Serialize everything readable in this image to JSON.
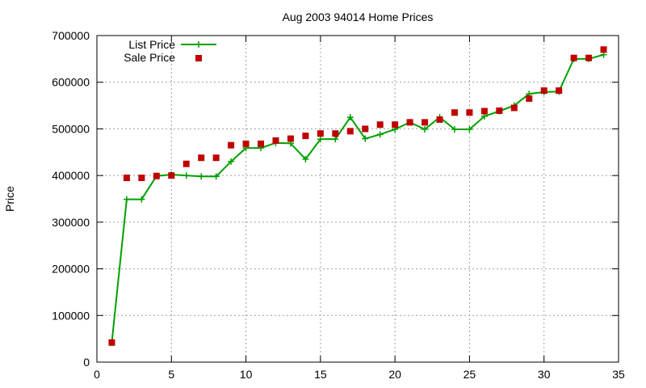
{
  "chart_data": {
    "type": "line",
    "title": "Aug 2003 94014 Home Prices",
    "xlabel": "",
    "ylabel": "Price",
    "xlim": [
      0,
      35
    ],
    "ylim": [
      0,
      700000
    ],
    "xticks": [
      0,
      5,
      10,
      15,
      20,
      25,
      30,
      35
    ],
    "yticks": [
      0,
      100000,
      200000,
      300000,
      400000,
      500000,
      600000,
      700000
    ],
    "grid": true,
    "legend_position": "top-left",
    "x": [
      1,
      2,
      3,
      4,
      5,
      6,
      7,
      8,
      9,
      10,
      11,
      12,
      13,
      14,
      15,
      16,
      17,
      18,
      19,
      20,
      21,
      22,
      23,
      24,
      25,
      26,
      27,
      28,
      29,
      30,
      31,
      32,
      33,
      34
    ],
    "series": [
      {
        "name": "List Price",
        "style": "line-with-plus-markers",
        "color": "#00a000",
        "values": [
          42000,
          349000,
          349000,
          399000,
          402000,
          400000,
          398000,
          398000,
          430000,
          459000,
          459000,
          470000,
          469000,
          435000,
          478000,
          478000,
          525000,
          479000,
          488000,
          499000,
          514000,
          499000,
          525000,
          499000,
          499000,
          527000,
          538000,
          550000,
          575000,
          579000,
          580000,
          650000,
          650000,
          659000
        ]
      },
      {
        "name": "Sale Price",
        "style": "square-markers",
        "color": "#c00000",
        "values": [
          42000,
          395000,
          395000,
          399000,
          400000,
          425000,
          438000,
          438000,
          465000,
          468000,
          468000,
          475000,
          479000,
          485000,
          490000,
          490000,
          495000,
          500000,
          509000,
          509000,
          514000,
          514000,
          520000,
          535000,
          535000,
          538000,
          539000,
          545000,
          565000,
          582000,
          582000,
          652000,
          652000,
          670000
        ]
      }
    ]
  }
}
